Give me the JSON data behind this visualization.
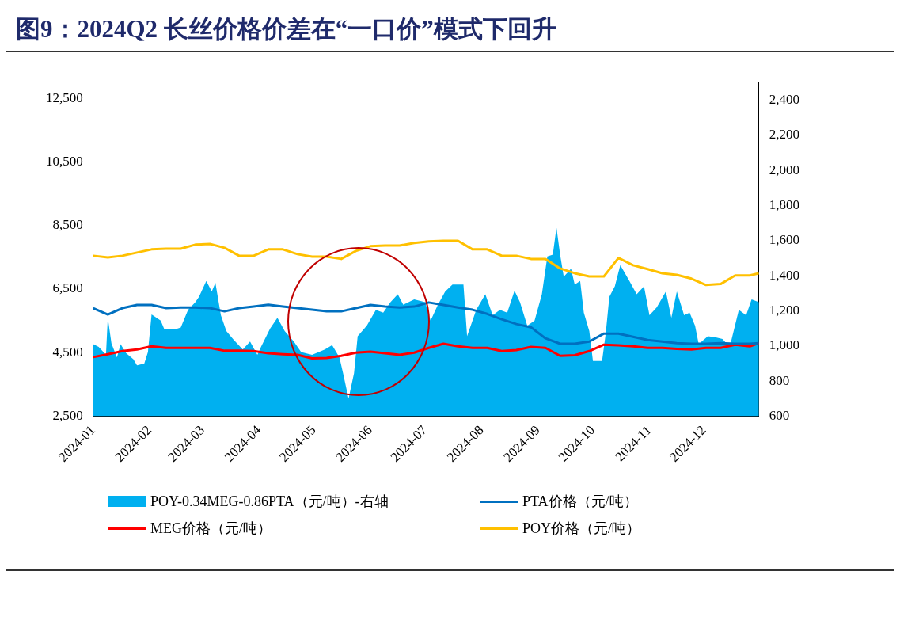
{
  "chart_data": {
    "type": "line",
    "title": "图9：2024Q2 长丝价格价差在“一口价”模式下回升",
    "xlim": [
      "2024-01-01",
      "2024-12-31"
    ],
    "xticks": [
      "2024-01",
      "2024-02",
      "2024-03",
      "2024-04",
      "2024-05",
      "2024-06",
      "2024-07",
      "2024-08",
      "2024-09",
      "2024-10",
      "2024-11",
      "2024-12"
    ],
    "ylim": [
      2500,
      13000
    ],
    "yticks": [
      {
        "value": 2500,
        "label": "2,500"
      },
      {
        "value": 4500,
        "label": "4,500"
      },
      {
        "value": 6500,
        "label": "6,500"
      },
      {
        "value": 8500,
        "label": "8,500"
      },
      {
        "value": 10500,
        "label": "10,500"
      },
      {
        "value": 12500,
        "label": "12,500"
      }
    ],
    "y2lim": [
      600,
      2500
    ],
    "y2ticks": [
      600,
      800,
      {
        "value": 1000,
        "label": "1,000"
      },
      {
        "value": 1200,
        "label": "1,200"
      },
      {
        "value": 1400,
        "label": "1,400"
      },
      {
        "value": 1600,
        "label": "1,600"
      },
      {
        "value": 1800,
        "label": "1,800"
      },
      {
        "value": 2000,
        "label": "2,000"
      },
      {
        "value": 2200,
        "label": "2,200"
      },
      {
        "value": 2400,
        "label": "2,400"
      }
    ],
    "legend": "bottom",
    "grid": false,
    "marker": "none",
    "series": [
      {
        "name": "POY-0.34MEG-0.86PTA（元/吨）-右轴",
        "type": "area",
        "axis": "y2",
        "color": "#00b0f0",
        "x": [
          "2024-01-01",
          "2024-01-04",
          "2024-01-08",
          "2024-01-09",
          "2024-01-11",
          "2024-01-14",
          "2024-01-16",
          "2024-01-19",
          "2024-01-23",
          "2024-01-25",
          "2024-01-29",
          "2024-01-31",
          "2024-02-02",
          "2024-02-07",
          "2024-02-09",
          "2024-02-15",
          "2024-02-18",
          "2024-02-22",
          "2024-02-26",
          "2024-02-28",
          "2024-03-03",
          "2024-03-06",
          "2024-03-08",
          "2024-03-11",
          "2024-03-14",
          "2024-03-18",
          "2024-03-23",
          "2024-03-27",
          "2024-03-31",
          "2024-04-02",
          "2024-04-07",
          "2024-04-11",
          "2024-04-15",
          "2024-04-20",
          "2024-04-24",
          "2024-04-30",
          "2024-05-07",
          "2024-05-11",
          "2024-05-15",
          "2024-05-17",
          "2024-05-20",
          "2024-05-23",
          "2024-05-25",
          "2024-05-30",
          "2024-06-04",
          "2024-06-08",
          "2024-06-12",
          "2024-06-16",
          "2024-06-19",
          "2024-06-25",
          "2024-07-01",
          "2024-07-04",
          "2024-07-08",
          "2024-07-12",
          "2024-07-16",
          "2024-07-22",
          "2024-07-24",
          "2024-07-29",
          "2024-08-03",
          "2024-08-07",
          "2024-08-11",
          "2024-08-15",
          "2024-08-19",
          "2024-08-22",
          "2024-08-26",
          "2024-08-30",
          "2024-09-03",
          "2024-09-06",
          "2024-09-09",
          "2024-09-11",
          "2024-09-13",
          "2024-09-15",
          "2024-09-19",
          "2024-09-21",
          "2024-09-24",
          "2024-09-26",
          "2024-09-29",
          "2024-10-01",
          "2024-10-06",
          "2024-10-08",
          "2024-10-10",
          "2024-10-13",
          "2024-10-16",
          "2024-10-21",
          "2024-10-25",
          "2024-10-29",
          "2024-11-01",
          "2024-11-05",
          "2024-11-10",
          "2024-11-13",
          "2024-11-16",
          "2024-11-20",
          "2024-11-23",
          "2024-11-26",
          "2024-11-28",
          "2024-12-03",
          "2024-12-07",
          "2024-12-11",
          "2024-12-15",
          "2024-12-20",
          "2024-12-24",
          "2024-12-27",
          "2024-12-31"
        ],
        "values": [
          1010,
          995,
          950,
          1160,
          1015,
          935,
          1010,
          960,
          925,
          890,
          900,
          965,
          1180,
          1145,
          1095,
          1095,
          1105,
          1205,
          1250,
          1280,
          1370,
          1310,
          1360,
          1175,
          1085,
          1035,
          980,
          1025,
          950,
          995,
          1100,
          1160,
          1085,
          1025,
          965,
          950,
          980,
          1005,
          935,
          845,
          700,
          845,
          1055,
          1115,
          1205,
          1190,
          1250,
          1295,
          1235,
          1265,
          1250,
          1145,
          1235,
          1310,
          1350,
          1350,
          1055,
          1205,
          1295,
          1175,
          1205,
          1190,
          1315,
          1250,
          1115,
          1145,
          1295,
          1510,
          1520,
          1675,
          1520,
          1395,
          1440,
          1350,
          1370,
          1190,
          1085,
          915,
          915,
          1070,
          1280,
          1340,
          1460,
          1370,
          1295,
          1340,
          1175,
          1220,
          1310,
          1160,
          1310,
          1175,
          1190,
          1115,
          1010,
          1055,
          1050,
          1040,
          995,
          1205,
          1175,
          1265,
          1250
        ]
      },
      {
        "name": "PTA价格（元/吨）",
        "type": "line",
        "color": "#0070c0",
        "x": [
          "2024-01-01",
          "2024-01-09",
          "2024-01-17",
          "2024-01-25",
          "2024-02-02",
          "2024-02-10",
          "2024-02-18",
          "2024-02-26",
          "2024-03-05",
          "2024-03-13",
          "2024-03-21",
          "2024-03-29",
          "2024-04-06",
          "2024-04-14",
          "2024-04-22",
          "2024-04-30",
          "2024-05-08",
          "2024-05-16",
          "2024-05-24",
          "2024-06-01",
          "2024-06-09",
          "2024-06-17",
          "2024-06-25",
          "2024-07-03",
          "2024-07-11",
          "2024-07-19",
          "2024-07-27",
          "2024-08-04",
          "2024-08-12",
          "2024-08-20",
          "2024-08-28",
          "2024-09-05",
          "2024-09-13",
          "2024-09-21",
          "2024-09-29",
          "2024-10-07",
          "2024-10-15",
          "2024-10-23",
          "2024-10-31",
          "2024-11-08",
          "2024-11-16",
          "2024-11-24",
          "2024-12-02",
          "2024-12-10",
          "2024-12-18",
          "2024-12-26",
          "2024-12-31"
        ],
        "values": [
          5900,
          5700,
          5900,
          6000,
          6000,
          5900,
          5920,
          5920,
          5900,
          5800,
          5900,
          5950,
          6010,
          5950,
          5900,
          5850,
          5800,
          5800,
          5900,
          6000,
          5950,
          5920,
          5950,
          6080,
          6000,
          5920,
          5850,
          5720,
          5550,
          5400,
          5300,
          4950,
          4780,
          4780,
          4850,
          5100,
          5100,
          5000,
          4900,
          4850,
          4800,
          4780,
          4780,
          4800,
          4780,
          4780,
          4800
        ]
      },
      {
        "name": "MEG价格（元/吨）",
        "type": "line",
        "color": "#ff0000",
        "x": [
          "2024-01-01",
          "2024-01-09",
          "2024-01-17",
          "2024-01-25",
          "2024-02-02",
          "2024-02-10",
          "2024-02-18",
          "2024-02-26",
          "2024-03-05",
          "2024-03-13",
          "2024-03-21",
          "2024-03-29",
          "2024-04-06",
          "2024-04-14",
          "2024-04-22",
          "2024-04-30",
          "2024-05-08",
          "2024-05-16",
          "2024-05-24",
          "2024-06-01",
          "2024-06-09",
          "2024-06-17",
          "2024-06-25",
          "2024-07-03",
          "2024-07-11",
          "2024-07-19",
          "2024-07-27",
          "2024-08-04",
          "2024-08-12",
          "2024-08-20",
          "2024-08-28",
          "2024-09-05",
          "2024-09-13",
          "2024-09-21",
          "2024-09-29",
          "2024-10-07",
          "2024-10-15",
          "2024-10-23",
          "2024-10-31",
          "2024-11-08",
          "2024-11-16",
          "2024-11-24",
          "2024-12-02",
          "2024-12-10",
          "2024-12-18",
          "2024-12-26",
          "2024-12-31"
        ],
        "values": [
          4360,
          4450,
          4550,
          4600,
          4700,
          4650,
          4650,
          4650,
          4650,
          4560,
          4560,
          4550,
          4480,
          4450,
          4430,
          4320,
          4330,
          4400,
          4500,
          4530,
          4480,
          4430,
          4500,
          4650,
          4780,
          4700,
          4650,
          4650,
          4550,
          4580,
          4680,
          4650,
          4400,
          4420,
          4550,
          4750,
          4730,
          4700,
          4650,
          4650,
          4620,
          4600,
          4650,
          4650,
          4750,
          4700,
          4800
        ]
      },
      {
        "name": "POY价格（元/吨）",
        "type": "line",
        "color": "#ffc000",
        "x": [
          "2024-01-01",
          "2024-01-09",
          "2024-01-17",
          "2024-01-25",
          "2024-02-02",
          "2024-02-10",
          "2024-02-18",
          "2024-02-26",
          "2024-03-05",
          "2024-03-13",
          "2024-03-21",
          "2024-03-29",
          "2024-04-06",
          "2024-04-14",
          "2024-04-22",
          "2024-04-30",
          "2024-05-08",
          "2024-05-16",
          "2024-05-24",
          "2024-06-01",
          "2024-06-09",
          "2024-06-17",
          "2024-06-25",
          "2024-07-03",
          "2024-07-11",
          "2024-07-19",
          "2024-07-27",
          "2024-08-04",
          "2024-08-12",
          "2024-08-20",
          "2024-08-28",
          "2024-09-05",
          "2024-09-13",
          "2024-09-21",
          "2024-09-29",
          "2024-10-07",
          "2024-10-15",
          "2024-10-23",
          "2024-10-31",
          "2024-11-08",
          "2024-11-16",
          "2024-11-24",
          "2024-12-02",
          "2024-12-10",
          "2024-12-18",
          "2024-12-26",
          "2024-12-31"
        ],
        "values": [
          7550,
          7500,
          7550,
          7650,
          7750,
          7770,
          7770,
          7900,
          7920,
          7800,
          7550,
          7550,
          7750,
          7750,
          7600,
          7520,
          7520,
          7450,
          7700,
          7850,
          7870,
          7870,
          7950,
          8000,
          8020,
          8020,
          7750,
          7750,
          7550,
          7550,
          7450,
          7450,
          7150,
          7000,
          6900,
          6900,
          7480,
          7250,
          7130,
          7000,
          6950,
          6830,
          6630,
          6660,
          6930,
          6930,
          7000
        ]
      }
    ]
  }
}
